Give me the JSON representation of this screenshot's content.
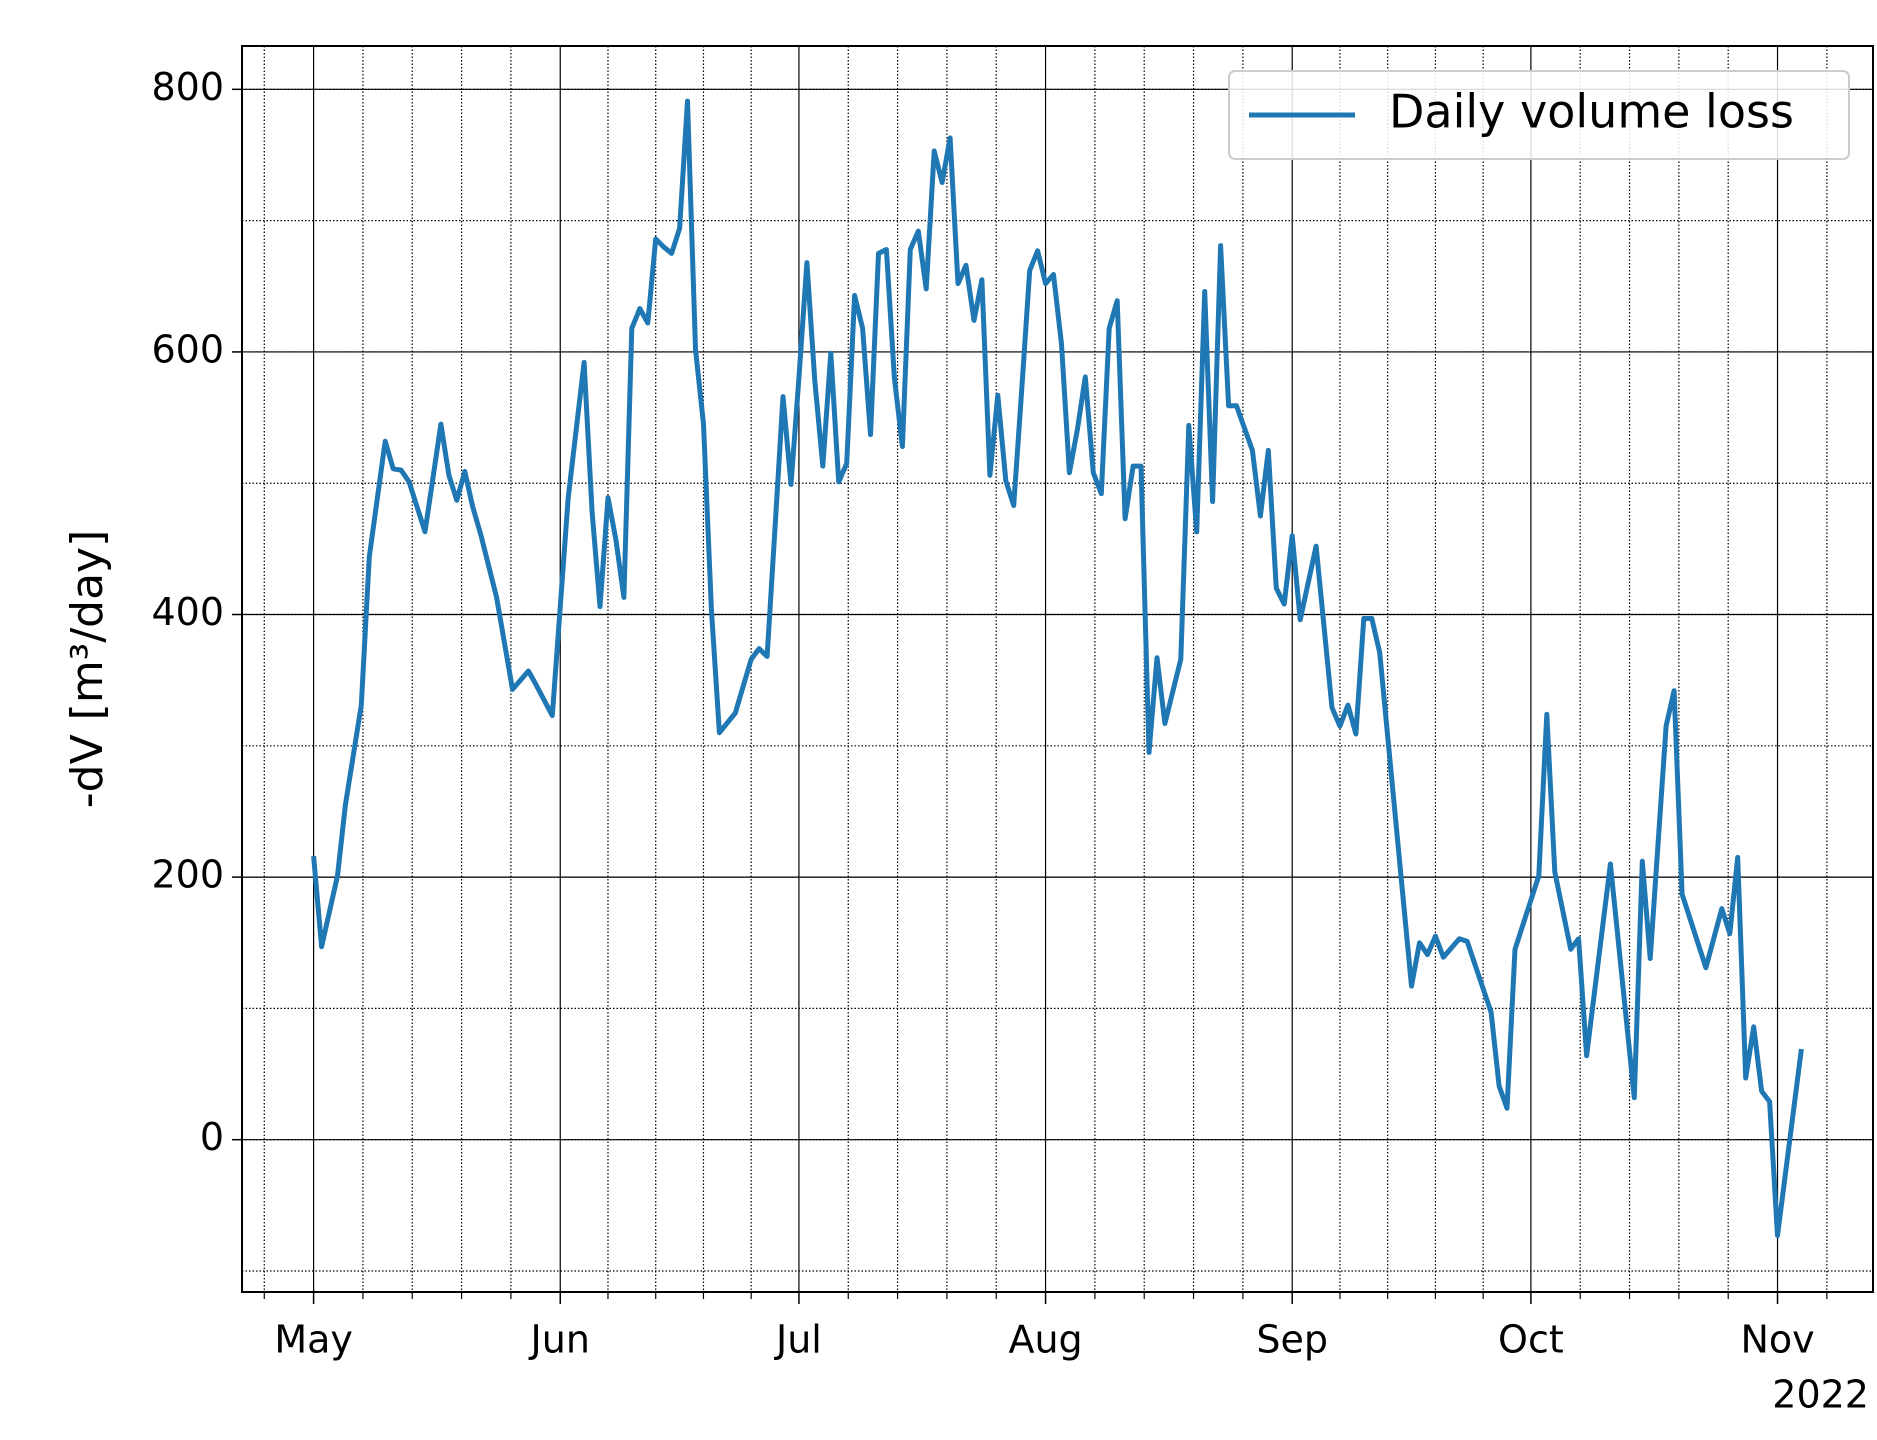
{
  "chart_data": {
    "type": "line",
    "ylabel": "-dV [m³/day]",
    "x_offset_label": "2022",
    "x": [
      "2022-05-01",
      "2022-05-02",
      "2022-05-04",
      "2022-05-05",
      "2022-05-07",
      "2022-05-08",
      "2022-05-10",
      "2022-05-11",
      "2022-05-12",
      "2022-05-13",
      "2022-05-15",
      "2022-05-17",
      "2022-05-18",
      "2022-05-19",
      "2022-05-20",
      "2022-05-21",
      "2022-05-22",
      "2022-05-24",
      "2022-05-26",
      "2022-05-27",
      "2022-05-28",
      "2022-05-29",
      "2022-05-31",
      "2022-06-02",
      "2022-06-04",
      "2022-06-05",
      "2022-06-06",
      "2022-06-07",
      "2022-06-08",
      "2022-06-09",
      "2022-06-10",
      "2022-06-11",
      "2022-06-12",
      "2022-06-13",
      "2022-06-14",
      "2022-06-15",
      "2022-06-16",
      "2022-06-17",
      "2022-06-18",
      "2022-06-19",
      "2022-06-20",
      "2022-06-21",
      "2022-06-23",
      "2022-06-25",
      "2022-06-26",
      "2022-06-27",
      "2022-06-28",
      "2022-06-29",
      "2022-06-30",
      "2022-07-01",
      "2022-07-02",
      "2022-07-03",
      "2022-07-04",
      "2022-07-05",
      "2022-07-06",
      "2022-07-07",
      "2022-07-08",
      "2022-07-09",
      "2022-07-10",
      "2022-07-11",
      "2022-07-12",
      "2022-07-13",
      "2022-07-14",
      "2022-07-15",
      "2022-07-16",
      "2022-07-17",
      "2022-07-18",
      "2022-07-19",
      "2022-07-20",
      "2022-07-21",
      "2022-07-22",
      "2022-07-23",
      "2022-07-24",
      "2022-07-25",
      "2022-07-26",
      "2022-07-27",
      "2022-07-28",
      "2022-07-29",
      "2022-07-30",
      "2022-07-31",
      "2022-08-01",
      "2022-08-02",
      "2022-08-03",
      "2022-08-04",
      "2022-08-05",
      "2022-08-06",
      "2022-08-07",
      "2022-08-08",
      "2022-08-09",
      "2022-08-10",
      "2022-08-11",
      "2022-08-12",
      "2022-08-13",
      "2022-08-14",
      "2022-08-15",
      "2022-08-16",
      "2022-08-18",
      "2022-08-19",
      "2022-08-20",
      "2022-08-21",
      "2022-08-22",
      "2022-08-23",
      "2022-08-24",
      "2022-08-25",
      "2022-08-27",
      "2022-08-28",
      "2022-08-29",
      "2022-08-30",
      "2022-08-31",
      "2022-09-01",
      "2022-09-02",
      "2022-09-04",
      "2022-09-06",
      "2022-09-07",
      "2022-09-08",
      "2022-09-09",
      "2022-09-10",
      "2022-09-11",
      "2022-09-12",
      "2022-09-16",
      "2022-09-17",
      "2022-09-18",
      "2022-09-19",
      "2022-09-20",
      "2022-09-22",
      "2022-09-23",
      "2022-09-26",
      "2022-09-27",
      "2022-09-28",
      "2022-09-29",
      "2022-10-02",
      "2022-10-03",
      "2022-10-04",
      "2022-10-06",
      "2022-10-07",
      "2022-10-08",
      "2022-10-11",
      "2022-10-14",
      "2022-10-15",
      "2022-10-16",
      "2022-10-18",
      "2022-10-19",
      "2022-10-20",
      "2022-10-23",
      "2022-10-25",
      "2022-10-26",
      "2022-10-27",
      "2022-10-28",
      "2022-10-29",
      "2022-10-30",
      "2022-10-31",
      "2022-11-01",
      "2022-11-04"
    ],
    "series": [
      {
        "name": "Daily volume loss",
        "color": "#1f77b4",
        "values": [
          216,
          147,
          201,
          255,
          331,
          444,
          532,
          511,
          510,
          501,
          463,
          545,
          506,
          487,
          509,
          482,
          461,
          413,
          343,
          350,
          357,
          346,
          323,
          489,
          592,
          478,
          406,
          489,
          457,
          413,
          618,
          633,
          622,
          686,
          680,
          675,
          694,
          791,
          602,
          545,
          404,
          310,
          325,
          366,
          374,
          368,
          467,
          566,
          499,
          580,
          668,
          578,
          513,
          599,
          501,
          515,
          643,
          618,
          537,
          675,
          678,
          580,
          528,
          678,
          692,
          648,
          753,
          729,
          763,
          652,
          666,
          624,
          655,
          506,
          567,
          502,
          483,
          571,
          662,
          677,
          652,
          659,
          606,
          508,
          541,
          581,
          508,
          492,
          618,
          639,
          473,
          513,
          513,
          295,
          367,
          317,
          366,
          544,
          463,
          646,
          486,
          681,
          559,
          559,
          525,
          475,
          525,
          420,
          408,
          460,
          396,
          452,
          329,
          315,
          331,
          309,
          397,
          397,
          371,
          117,
          150,
          141,
          155,
          139,
          153,
          151,
          97,
          41,
          24,
          145,
          201,
          324,
          204,
          145,
          153,
          64,
          210,
          32,
          212,
          138,
          315,
          342,
          187,
          131,
          176,
          157,
          215,
          47,
          86,
          37,
          29,
          -73,
          69
        ]
      }
    ],
    "xlim": [
      "2022-04-22",
      "2022-11-13"
    ],
    "xticks": [
      {
        "value": "2022-05-01",
        "label": "May"
      },
      {
        "value": "2022-06-01",
        "label": "Jun"
      },
      {
        "value": "2022-07-01",
        "label": "Jul"
      },
      {
        "value": "2022-08-01",
        "label": "Aug"
      },
      {
        "value": "2022-09-01",
        "label": "Sep"
      },
      {
        "value": "2022-10-01",
        "label": "Oct"
      },
      {
        "value": "2022-11-01",
        "label": "Nov"
      }
    ],
    "ylim": [
      -116,
      833
    ],
    "yticks": [
      0,
      200,
      400,
      600,
      800
    ],
    "grid": true,
    "minor_grid": true,
    "legend": "upper right"
  }
}
